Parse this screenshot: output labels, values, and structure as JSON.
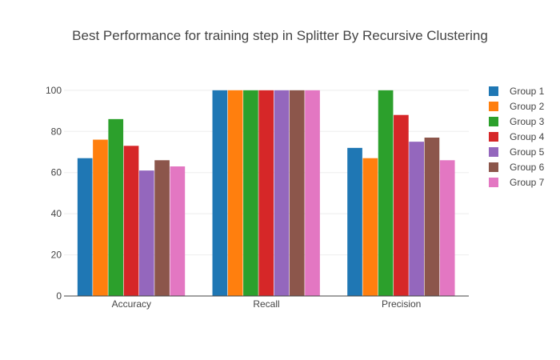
{
  "chart_data": {
    "type": "bar",
    "title": "Best Performance for training step in Splitter By Recursive Clustering",
    "xlabel": "",
    "ylabel": "",
    "categories": [
      "Accuracy",
      "Recall",
      "Precision"
    ],
    "ylim": [
      0,
      105
    ],
    "yticks": [
      0,
      20,
      40,
      60,
      80,
      100
    ],
    "grid": true,
    "legend": "right",
    "series": [
      {
        "name": "Group 1",
        "color": "#1f77b4",
        "values": [
          67,
          100,
          72
        ]
      },
      {
        "name": "Group 2",
        "color": "#ff7f0e",
        "values": [
          76,
          100,
          67
        ]
      },
      {
        "name": "Group 3",
        "color": "#2ca02c",
        "values": [
          86,
          100,
          100
        ]
      },
      {
        "name": "Group 4",
        "color": "#d62728",
        "values": [
          73,
          100,
          88
        ]
      },
      {
        "name": "Group 5",
        "color": "#9467bd",
        "values": [
          61,
          100,
          75
        ]
      },
      {
        "name": "Group 6",
        "color": "#8c564b",
        "values": [
          66,
          100,
          77
        ]
      },
      {
        "name": "Group 7",
        "color": "#e377c2",
        "values": [
          63,
          100,
          66
        ]
      }
    ]
  }
}
